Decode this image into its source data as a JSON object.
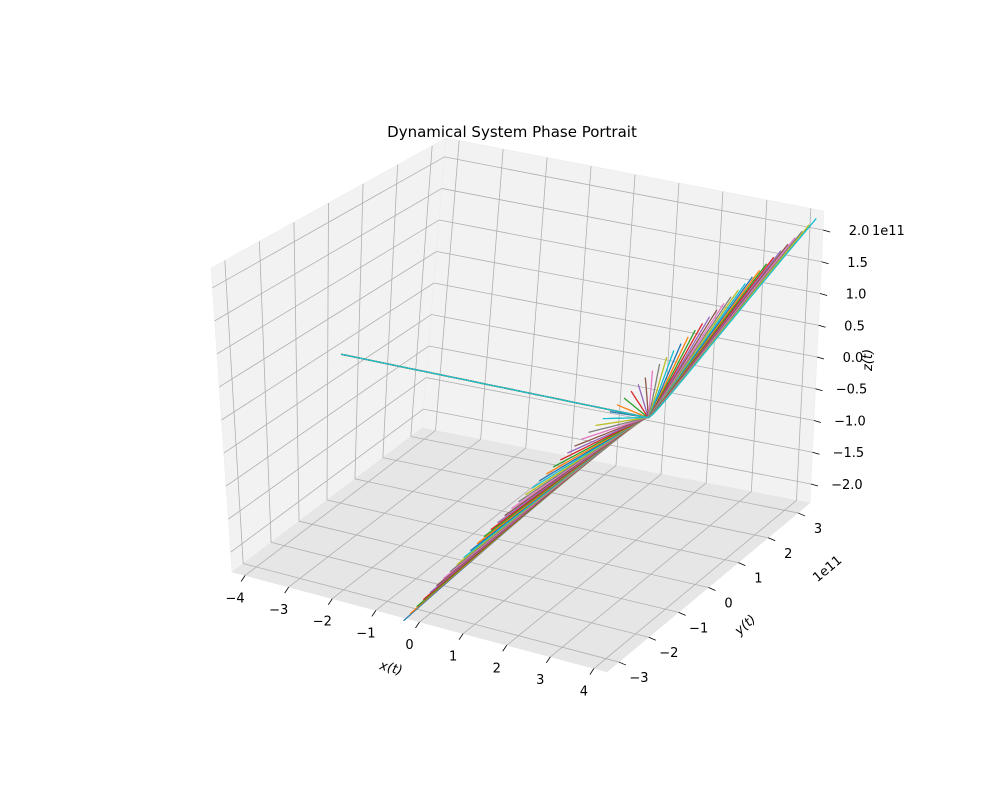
{
  "chart_data": {
    "type": "line",
    "projection": "3d",
    "title": "Dynamical System Phase Portrait",
    "xlabel": "x(t)",
    "ylabel": "y(t)",
    "zlabel": "z(t)",
    "xlim": [
      -4.3,
      4.3
    ],
    "ylim": [
      -3.4,
      3.4
    ],
    "zlim": [
      -2.3,
      2.3
    ],
    "x_ticks": [
      -4,
      -3,
      -2,
      -1,
      0,
      1,
      2,
      3,
      4
    ],
    "y_ticks": [
      -3,
      -2,
      -1,
      0,
      1,
      2,
      3
    ],
    "z_ticks": [
      -2.0,
      -1.5,
      -1.0,
      -0.5,
      0.0,
      0.5,
      1.0,
      1.5,
      2.0
    ],
    "y_tick_labels": [
      "−3",
      "−2",
      "−1",
      "0",
      "1",
      "2",
      "3"
    ],
    "x_tick_labels": [
      "−4",
      "−3",
      "−2",
      "−1",
      "0",
      "1",
      "2",
      "3",
      "4"
    ],
    "z_tick_labels": [
      "−2.0",
      "−1.5",
      "−1.0",
      "−0.5",
      "0.0",
      "0.5",
      "1.0",
      "1.5",
      "2.0"
    ],
    "y_offset_label": "1e11",
    "z_offset_label": "1e11",
    "grid": true,
    "series_colors": [
      "#1f77b4",
      "#ff7f0e",
      "#2ca02c",
      "#d62728",
      "#9467bd",
      "#8c564b",
      "#e377c2",
      "#7f7f7f",
      "#bcbd22",
      "#17becf"
    ],
    "trajectory_count": 60,
    "trajectories_description": "trajectories converge along the x-axis from x=-4 at y=z=0, then fan out near x=2.9 toward y=-3.5e11,z=-2.3e11 and y=3.3e11,z=2.2e11"
  }
}
